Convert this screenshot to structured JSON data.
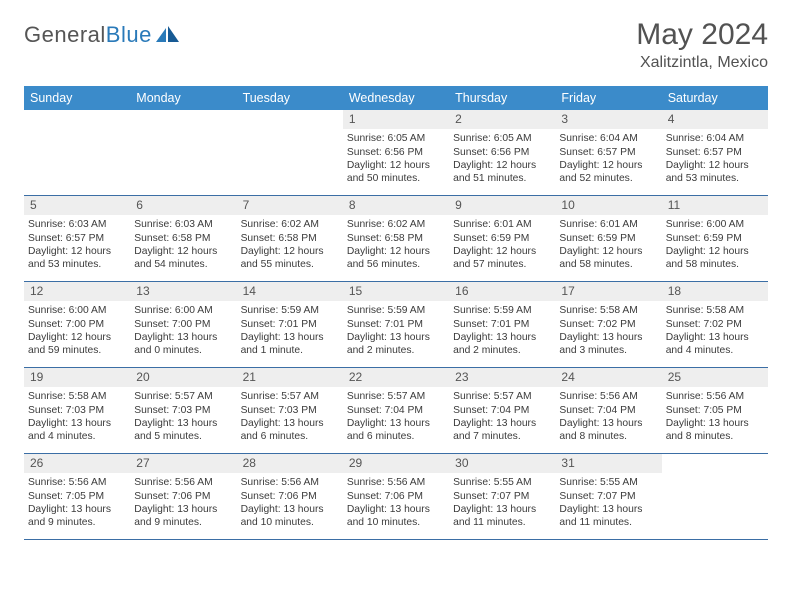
{
  "logo": {
    "word1": "General",
    "word2": "Blue"
  },
  "title": "May 2024",
  "location": "Xalitzintla, Mexico",
  "colors": {
    "header_bg": "#3b8bca",
    "header_fg": "#ffffff",
    "daynum_bg": "#eeeeee",
    "border": "#3b6ea5",
    "logo_accent": "#2a7ab9",
    "text": "#3b3b3b"
  },
  "weekdays": [
    "Sunday",
    "Monday",
    "Tuesday",
    "Wednesday",
    "Thursday",
    "Friday",
    "Saturday"
  ],
  "layout": {
    "columns": 7,
    "rows": 5,
    "lead_blanks": 3
  },
  "days": [
    {
      "n": "1",
      "sunrise": "6:05 AM",
      "sunset": "6:56 PM",
      "daylight": "12 hours and 50 minutes."
    },
    {
      "n": "2",
      "sunrise": "6:05 AM",
      "sunset": "6:56 PM",
      "daylight": "12 hours and 51 minutes."
    },
    {
      "n": "3",
      "sunrise": "6:04 AM",
      "sunset": "6:57 PM",
      "daylight": "12 hours and 52 minutes."
    },
    {
      "n": "4",
      "sunrise": "6:04 AM",
      "sunset": "6:57 PM",
      "daylight": "12 hours and 53 minutes."
    },
    {
      "n": "5",
      "sunrise": "6:03 AM",
      "sunset": "6:57 PM",
      "daylight": "12 hours and 53 minutes."
    },
    {
      "n": "6",
      "sunrise": "6:03 AM",
      "sunset": "6:58 PM",
      "daylight": "12 hours and 54 minutes."
    },
    {
      "n": "7",
      "sunrise": "6:02 AM",
      "sunset": "6:58 PM",
      "daylight": "12 hours and 55 minutes."
    },
    {
      "n": "8",
      "sunrise": "6:02 AM",
      "sunset": "6:58 PM",
      "daylight": "12 hours and 56 minutes."
    },
    {
      "n": "9",
      "sunrise": "6:01 AM",
      "sunset": "6:59 PM",
      "daylight": "12 hours and 57 minutes."
    },
    {
      "n": "10",
      "sunrise": "6:01 AM",
      "sunset": "6:59 PM",
      "daylight": "12 hours and 58 minutes."
    },
    {
      "n": "11",
      "sunrise": "6:00 AM",
      "sunset": "6:59 PM",
      "daylight": "12 hours and 58 minutes."
    },
    {
      "n": "12",
      "sunrise": "6:00 AM",
      "sunset": "7:00 PM",
      "daylight": "12 hours and 59 minutes."
    },
    {
      "n": "13",
      "sunrise": "6:00 AM",
      "sunset": "7:00 PM",
      "daylight": "13 hours and 0 minutes."
    },
    {
      "n": "14",
      "sunrise": "5:59 AM",
      "sunset": "7:01 PM",
      "daylight": "13 hours and 1 minute."
    },
    {
      "n": "15",
      "sunrise": "5:59 AM",
      "sunset": "7:01 PM",
      "daylight": "13 hours and 2 minutes."
    },
    {
      "n": "16",
      "sunrise": "5:59 AM",
      "sunset": "7:01 PM",
      "daylight": "13 hours and 2 minutes."
    },
    {
      "n": "17",
      "sunrise": "5:58 AM",
      "sunset": "7:02 PM",
      "daylight": "13 hours and 3 minutes."
    },
    {
      "n": "18",
      "sunrise": "5:58 AM",
      "sunset": "7:02 PM",
      "daylight": "13 hours and 4 minutes."
    },
    {
      "n": "19",
      "sunrise": "5:58 AM",
      "sunset": "7:03 PM",
      "daylight": "13 hours and 4 minutes."
    },
    {
      "n": "20",
      "sunrise": "5:57 AM",
      "sunset": "7:03 PM",
      "daylight": "13 hours and 5 minutes."
    },
    {
      "n": "21",
      "sunrise": "5:57 AM",
      "sunset": "7:03 PM",
      "daylight": "13 hours and 6 minutes."
    },
    {
      "n": "22",
      "sunrise": "5:57 AM",
      "sunset": "7:04 PM",
      "daylight": "13 hours and 6 minutes."
    },
    {
      "n": "23",
      "sunrise": "5:57 AM",
      "sunset": "7:04 PM",
      "daylight": "13 hours and 7 minutes."
    },
    {
      "n": "24",
      "sunrise": "5:56 AM",
      "sunset": "7:04 PM",
      "daylight": "13 hours and 8 minutes."
    },
    {
      "n": "25",
      "sunrise": "5:56 AM",
      "sunset": "7:05 PM",
      "daylight": "13 hours and 8 minutes."
    },
    {
      "n": "26",
      "sunrise": "5:56 AM",
      "sunset": "7:05 PM",
      "daylight": "13 hours and 9 minutes."
    },
    {
      "n": "27",
      "sunrise": "5:56 AM",
      "sunset": "7:06 PM",
      "daylight": "13 hours and 9 minutes."
    },
    {
      "n": "28",
      "sunrise": "5:56 AM",
      "sunset": "7:06 PM",
      "daylight": "13 hours and 10 minutes."
    },
    {
      "n": "29",
      "sunrise": "5:56 AM",
      "sunset": "7:06 PM",
      "daylight": "13 hours and 10 minutes."
    },
    {
      "n": "30",
      "sunrise": "5:55 AM",
      "sunset": "7:07 PM",
      "daylight": "13 hours and 11 minutes."
    },
    {
      "n": "31",
      "sunrise": "5:55 AM",
      "sunset": "7:07 PM",
      "daylight": "13 hours and 11 minutes."
    }
  ],
  "labels": {
    "sunrise": "Sunrise:",
    "sunset": "Sunset:",
    "daylight": "Daylight:"
  }
}
